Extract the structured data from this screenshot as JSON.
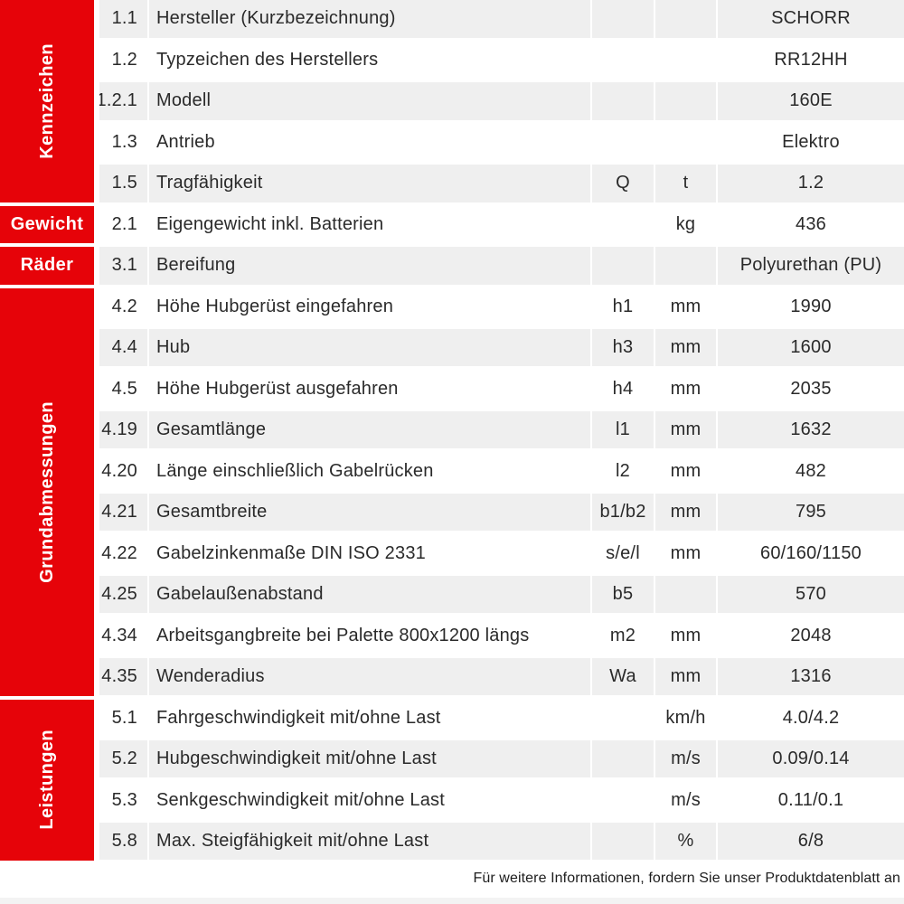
{
  "sidebar": {
    "groups": [
      {
        "id": "kennzeichen",
        "label": "Kennzeichen"
      },
      {
        "id": "gewicht",
        "label": "Gewicht"
      },
      {
        "id": "raeder",
        "label": "Räder"
      },
      {
        "id": "grundabmessungen",
        "label": "Grundabmessungen"
      },
      {
        "id": "leistungen",
        "label": "Leistungen"
      }
    ]
  },
  "table": {
    "rows": [
      {
        "num": "1.1",
        "desc": "Hersteller (Kurzbezeichnung)",
        "sym": "",
        "unit": "",
        "val": "SCHORR"
      },
      {
        "num": "1.2",
        "desc": "Typzeichen des Herstellers",
        "sym": "",
        "unit": "",
        "val": "RR12HH"
      },
      {
        "num": "1.2.1",
        "desc": "Modell",
        "sym": "",
        "unit": "",
        "val": "160E"
      },
      {
        "num": "1.3",
        "desc": "Antrieb",
        "sym": "",
        "unit": "",
        "val": "Elektro"
      },
      {
        "num": "1.5",
        "desc": "Tragfähigkeit",
        "sym": "Q",
        "unit": "t",
        "val": "1.2"
      },
      {
        "num": "2.1",
        "desc": "Eigengewicht inkl. Batterien",
        "sym": "",
        "unit": "kg",
        "val": "436"
      },
      {
        "num": "3.1",
        "desc": "Bereifung",
        "sym": "",
        "unit": "",
        "val": "Polyurethan (PU)"
      },
      {
        "num": "4.2",
        "desc": "Höhe Hubgerüst eingefahren",
        "sym": "h1",
        "unit": "mm",
        "val": "1990"
      },
      {
        "num": "4.4",
        "desc": "Hub",
        "sym": "h3",
        "unit": "mm",
        "val": "1600"
      },
      {
        "num": "4.5",
        "desc": "Höhe Hubgerüst ausgefahren",
        "sym": "h4",
        "unit": "mm",
        "val": "2035"
      },
      {
        "num": "4.19",
        "desc": "Gesamtlänge",
        "sym": "l1",
        "unit": "mm",
        "val": "1632"
      },
      {
        "num": "4.20",
        "desc": "Länge einschließlich Gabelrücken",
        "sym": "l2",
        "unit": "mm",
        "val": "482"
      },
      {
        "num": "4.21",
        "desc": "Gesamtbreite",
        "sym": "b1/b2",
        "unit": "mm",
        "val": "795"
      },
      {
        "num": "4.22",
        "desc": "Gabelzinkenmaße DIN ISO 2331",
        "sym": "s/e/l",
        "unit": "mm",
        "val": "60/160/1150"
      },
      {
        "num": "4.25",
        "desc": "Gabelaußenabstand",
        "sym": "b5",
        "unit": "",
        "val": "570"
      },
      {
        "num": "4.34",
        "desc": "Arbeitsgangbreite bei Palette 800x1200 längs",
        "sym": "m2",
        "unit": "mm",
        "val": "2048"
      },
      {
        "num": "4.35",
        "desc": "Wenderadius",
        "sym": "Wa",
        "unit": "mm",
        "val": "1316"
      },
      {
        "num": "5.1",
        "desc": "Fahrgeschwindigkeit mit/ohne Last",
        "sym": "",
        "unit": "km/h",
        "val": "4.0/4.2"
      },
      {
        "num": "5.2",
        "desc": "Hubgeschwindigkeit mit/ohne Last",
        "sym": "",
        "unit": "m/s",
        "val": "0.09/0.14"
      },
      {
        "num": "5.3",
        "desc": "Senkgeschwindigkeit mit/ohne Last",
        "sym": "",
        "unit": "m/s",
        "val": "0.11/0.1"
      },
      {
        "num": "5.8",
        "desc": "Max. Steigfähigkeit mit/ohne Last",
        "sym": "",
        "unit": "%",
        "val": "6/8"
      }
    ]
  },
  "footer": {
    "note": "Für weitere Informationen, fordern Sie unser Produktdatenblatt an"
  },
  "colors": {
    "accent_red": "#e60309",
    "stripe_gray": "#efefef",
    "text_dark": "#2a2a2a"
  }
}
